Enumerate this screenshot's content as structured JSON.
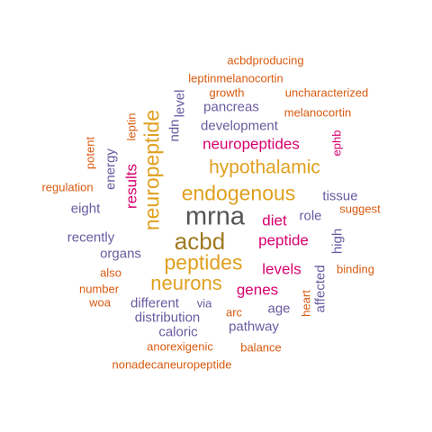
{
  "title": "",
  "palette": {
    "gray": "#555555",
    "gold": "#e0a020",
    "magenta": "#d6006e",
    "purple": "#6a5aa0",
    "orange": "#d85a10",
    "brown": "#a07820"
  },
  "words": [
    {
      "text": "mrna",
      "weight": 29,
      "color": "gray"
    },
    {
      "text": "acbd",
      "weight": 26,
      "color": "brown"
    },
    {
      "text": "neuropeptide",
      "weight": 23,
      "color": "gold"
    },
    {
      "text": "endogenous",
      "weight": 23,
      "color": "gold"
    },
    {
      "text": "peptides",
      "weight": 23,
      "color": "gold"
    },
    {
      "text": "neurons",
      "weight": 22,
      "color": "gold"
    },
    {
      "text": "hypothalamic",
      "weight": 21,
      "color": "gold"
    },
    {
      "text": "neuropeptides",
      "weight": 17,
      "color": "magenta"
    },
    {
      "text": "results",
      "weight": 17,
      "color": "magenta"
    },
    {
      "text": "diet",
      "weight": 17,
      "color": "magenta"
    },
    {
      "text": "peptide",
      "weight": 17,
      "color": "magenta"
    },
    {
      "text": "levels",
      "weight": 17,
      "color": "magenta"
    },
    {
      "text": "genes",
      "weight": 17,
      "color": "magenta"
    },
    {
      "text": "tissue",
      "weight": 15,
      "color": "purple"
    },
    {
      "text": "role",
      "weight": 15,
      "color": "purple"
    },
    {
      "text": "high",
      "weight": 15,
      "color": "purple"
    },
    {
      "text": "affected",
      "weight": 15,
      "color": "purple"
    },
    {
      "text": "age",
      "weight": 15,
      "color": "purple"
    },
    {
      "text": "pathway",
      "weight": 15,
      "color": "purple"
    },
    {
      "text": "caloric",
      "weight": 15,
      "color": "purple"
    },
    {
      "text": "distribution",
      "weight": 15,
      "color": "purple"
    },
    {
      "text": "different",
      "weight": 15,
      "color": "purple"
    },
    {
      "text": "organs",
      "weight": 15,
      "color": "purple"
    },
    {
      "text": "recently",
      "weight": 15,
      "color": "purple"
    },
    {
      "text": "eight",
      "weight": 15,
      "color": "purple"
    },
    {
      "text": "energy",
      "weight": 15,
      "color": "purple"
    },
    {
      "text": "development",
      "weight": 15,
      "color": "purple"
    },
    {
      "text": "pancreas",
      "weight": 15,
      "color": "purple"
    },
    {
      "text": "level",
      "weight": 15,
      "color": "purple"
    },
    {
      "text": "ndn",
      "weight": 15,
      "color": "purple"
    },
    {
      "text": "acbdproducing",
      "weight": 13,
      "color": "orange"
    },
    {
      "text": "leptinmelanocortin",
      "weight": 13,
      "color": "orange"
    },
    {
      "text": "growth",
      "weight": 13,
      "color": "orange"
    },
    {
      "text": "uncharacterized",
      "weight": 13,
      "color": "orange"
    },
    {
      "text": "melanocortin",
      "weight": 13,
      "color": "orange"
    },
    {
      "text": "ephb",
      "weight": 13,
      "color": "magenta"
    },
    {
      "text": "leptin",
      "weight": 13,
      "color": "orange"
    },
    {
      "text": "potent",
      "weight": 13,
      "color": "orange"
    },
    {
      "text": "regulation",
      "weight": 13,
      "color": "orange"
    },
    {
      "text": "suggest",
      "weight": 13,
      "color": "orange"
    },
    {
      "text": "binding",
      "weight": 13,
      "color": "orange"
    },
    {
      "text": "heart",
      "weight": 13,
      "color": "orange"
    },
    {
      "text": "also",
      "weight": 13,
      "color": "orange"
    },
    {
      "text": "number",
      "weight": 13,
      "color": "orange"
    },
    {
      "text": "woa",
      "weight": 13,
      "color": "orange"
    },
    {
      "text": "via",
      "weight": 13,
      "color": "purple"
    },
    {
      "text": "arc",
      "weight": 13,
      "color": "orange"
    },
    {
      "text": "anorexigenic",
      "weight": 13,
      "color": "orange"
    },
    {
      "text": "balance",
      "weight": 13,
      "color": "orange"
    },
    {
      "text": "nonadecaneuropeptide",
      "weight": 13,
      "color": "orange"
    }
  ]
}
